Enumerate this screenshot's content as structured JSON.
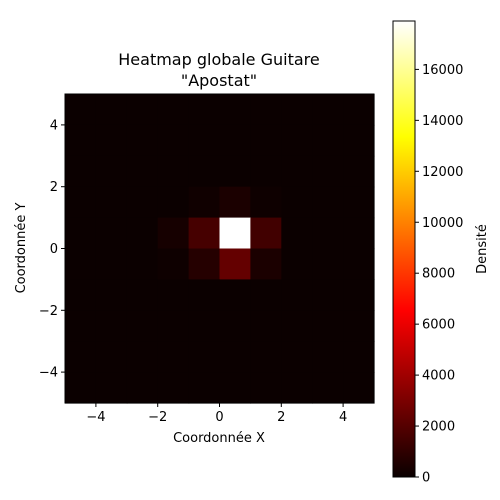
{
  "chart_data": {
    "type": "heatmap",
    "title_line1": "Heatmap globale Guitare",
    "title_line2": "\"Apostat\"",
    "xlabel": "Coordonnée X",
    "ylabel": "Coordonnée Y",
    "colorbar_label": "Densité",
    "colormap": "hot",
    "xlim": [
      -5,
      5
    ],
    "ylim": [
      -5,
      5
    ],
    "vmin": 0,
    "vmax": 17900,
    "x_edges": [
      -5,
      -4,
      -3,
      -2,
      -1,
      0,
      1,
      2,
      3,
      4,
      5
    ],
    "y_edges": [
      -5,
      -4,
      -3,
      -2,
      -1,
      0,
      1,
      2,
      3,
      4,
      5
    ],
    "x_ticks": [
      {
        "value": -4,
        "label": "−4"
      },
      {
        "value": -2,
        "label": "−2"
      },
      {
        "value": 0,
        "label": "0"
      },
      {
        "value": 2,
        "label": "2"
      },
      {
        "value": 4,
        "label": "4"
      }
    ],
    "y_ticks": [
      {
        "value": -4,
        "label": "−4"
      },
      {
        "value": -2,
        "label": "−2"
      },
      {
        "value": 0,
        "label": "0"
      },
      {
        "value": 2,
        "label": "2"
      },
      {
        "value": 4,
        "label": "4"
      }
    ],
    "colorbar_ticks": [
      {
        "value": 0,
        "label": "0"
      },
      {
        "value": 2000,
        "label": "2000"
      },
      {
        "value": 4000,
        "label": "4000"
      },
      {
        "value": 6000,
        "label": "6000"
      },
      {
        "value": 8000,
        "label": "8000"
      },
      {
        "value": 10000,
        "label": "10000"
      },
      {
        "value": 12000,
        "label": "12000"
      },
      {
        "value": 14000,
        "label": "14000"
      },
      {
        "value": 16000,
        "label": "16000"
      }
    ],
    "density_rows_top_to_bottom": [
      [
        0,
        0,
        0,
        0,
        0,
        0,
        0,
        0,
        0,
        0
      ],
      [
        0,
        0,
        0,
        0,
        0,
        0,
        0,
        0,
        0,
        0
      ],
      [
        0,
        0,
        0,
        0,
        0,
        0,
        0,
        0,
        0,
        0
      ],
      [
        0,
        0,
        0,
        0,
        150,
        450,
        100,
        0,
        0,
        0
      ],
      [
        0,
        0,
        0,
        300,
        1600,
        17900,
        1450,
        0,
        0,
        0
      ],
      [
        0,
        0,
        0,
        100,
        700,
        2400,
        450,
        0,
        0,
        0
      ],
      [
        0,
        0,
        0,
        0,
        0,
        0,
        0,
        0,
        0,
        0
      ],
      [
        0,
        0,
        0,
        0,
        0,
        0,
        0,
        0,
        0,
        0
      ],
      [
        0,
        0,
        0,
        0,
        0,
        0,
        0,
        0,
        0,
        0
      ],
      [
        0,
        0,
        0,
        0,
        0,
        0,
        0,
        0,
        0,
        0
      ]
    ]
  }
}
